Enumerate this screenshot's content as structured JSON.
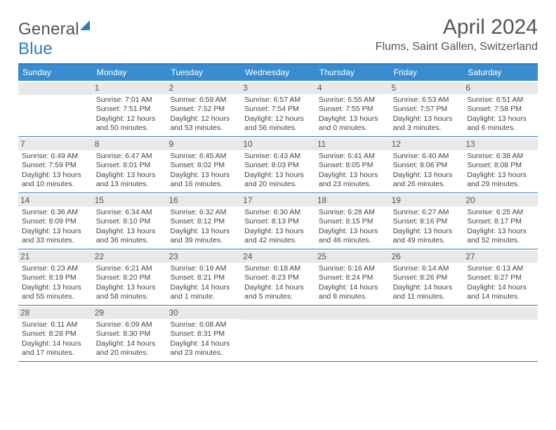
{
  "logo": {
    "part1": "General",
    "part2": "Blue"
  },
  "title": "April 2024",
  "location": "Flums, Saint Gallen, Switzerland",
  "dayNames": [
    "Sunday",
    "Monday",
    "Tuesday",
    "Wednesday",
    "Thursday",
    "Friday",
    "Saturday"
  ],
  "colors": {
    "accent": "#3a8cd1",
    "rule": "#2b7cc2",
    "cellhead": "#e9e9e9",
    "text": "#444444"
  },
  "weeks": [
    [
      {
        "num": "",
        "sunrise": "",
        "sunset": "",
        "daylight1": "",
        "daylight2": ""
      },
      {
        "num": "1",
        "sunrise": "Sunrise: 7:01 AM",
        "sunset": "Sunset: 7:51 PM",
        "daylight1": "Daylight: 12 hours",
        "daylight2": "and 50 minutes."
      },
      {
        "num": "2",
        "sunrise": "Sunrise: 6:59 AM",
        "sunset": "Sunset: 7:52 PM",
        "daylight1": "Daylight: 12 hours",
        "daylight2": "and 53 minutes."
      },
      {
        "num": "3",
        "sunrise": "Sunrise: 6:57 AM",
        "sunset": "Sunset: 7:54 PM",
        "daylight1": "Daylight: 12 hours",
        "daylight2": "and 56 minutes."
      },
      {
        "num": "4",
        "sunrise": "Sunrise: 6:55 AM",
        "sunset": "Sunset: 7:55 PM",
        "daylight1": "Daylight: 13 hours",
        "daylight2": "and 0 minutes."
      },
      {
        "num": "5",
        "sunrise": "Sunrise: 6:53 AM",
        "sunset": "Sunset: 7:57 PM",
        "daylight1": "Daylight: 13 hours",
        "daylight2": "and 3 minutes."
      },
      {
        "num": "6",
        "sunrise": "Sunrise: 6:51 AM",
        "sunset": "Sunset: 7:58 PM",
        "daylight1": "Daylight: 13 hours",
        "daylight2": "and 6 minutes."
      }
    ],
    [
      {
        "num": "7",
        "sunrise": "Sunrise: 6:49 AM",
        "sunset": "Sunset: 7:59 PM",
        "daylight1": "Daylight: 13 hours",
        "daylight2": "and 10 minutes."
      },
      {
        "num": "8",
        "sunrise": "Sunrise: 6:47 AM",
        "sunset": "Sunset: 8:01 PM",
        "daylight1": "Daylight: 13 hours",
        "daylight2": "and 13 minutes."
      },
      {
        "num": "9",
        "sunrise": "Sunrise: 6:45 AM",
        "sunset": "Sunset: 8:02 PM",
        "daylight1": "Daylight: 13 hours",
        "daylight2": "and 16 minutes."
      },
      {
        "num": "10",
        "sunrise": "Sunrise: 6:43 AM",
        "sunset": "Sunset: 8:03 PM",
        "daylight1": "Daylight: 13 hours",
        "daylight2": "and 20 minutes."
      },
      {
        "num": "11",
        "sunrise": "Sunrise: 6:41 AM",
        "sunset": "Sunset: 8:05 PM",
        "daylight1": "Daylight: 13 hours",
        "daylight2": "and 23 minutes."
      },
      {
        "num": "12",
        "sunrise": "Sunrise: 6:40 AM",
        "sunset": "Sunset: 8:06 PM",
        "daylight1": "Daylight: 13 hours",
        "daylight2": "and 26 minutes."
      },
      {
        "num": "13",
        "sunrise": "Sunrise: 6:38 AM",
        "sunset": "Sunset: 8:08 PM",
        "daylight1": "Daylight: 13 hours",
        "daylight2": "and 29 minutes."
      }
    ],
    [
      {
        "num": "14",
        "sunrise": "Sunrise: 6:36 AM",
        "sunset": "Sunset: 8:09 PM",
        "daylight1": "Daylight: 13 hours",
        "daylight2": "and 33 minutes."
      },
      {
        "num": "15",
        "sunrise": "Sunrise: 6:34 AM",
        "sunset": "Sunset: 8:10 PM",
        "daylight1": "Daylight: 13 hours",
        "daylight2": "and 36 minutes."
      },
      {
        "num": "16",
        "sunrise": "Sunrise: 6:32 AM",
        "sunset": "Sunset: 8:12 PM",
        "daylight1": "Daylight: 13 hours",
        "daylight2": "and 39 minutes."
      },
      {
        "num": "17",
        "sunrise": "Sunrise: 6:30 AM",
        "sunset": "Sunset: 8:13 PM",
        "daylight1": "Daylight: 13 hours",
        "daylight2": "and 42 minutes."
      },
      {
        "num": "18",
        "sunrise": "Sunrise: 6:28 AM",
        "sunset": "Sunset: 8:15 PM",
        "daylight1": "Daylight: 13 hours",
        "daylight2": "and 46 minutes."
      },
      {
        "num": "19",
        "sunrise": "Sunrise: 6:27 AM",
        "sunset": "Sunset: 8:16 PM",
        "daylight1": "Daylight: 13 hours",
        "daylight2": "and 49 minutes."
      },
      {
        "num": "20",
        "sunrise": "Sunrise: 6:25 AM",
        "sunset": "Sunset: 8:17 PM",
        "daylight1": "Daylight: 13 hours",
        "daylight2": "and 52 minutes."
      }
    ],
    [
      {
        "num": "21",
        "sunrise": "Sunrise: 6:23 AM",
        "sunset": "Sunset: 8:19 PM",
        "daylight1": "Daylight: 13 hours",
        "daylight2": "and 55 minutes."
      },
      {
        "num": "22",
        "sunrise": "Sunrise: 6:21 AM",
        "sunset": "Sunset: 8:20 PM",
        "daylight1": "Daylight: 13 hours",
        "daylight2": "and 58 minutes."
      },
      {
        "num": "23",
        "sunrise": "Sunrise: 6:19 AM",
        "sunset": "Sunset: 8:21 PM",
        "daylight1": "Daylight: 14 hours",
        "daylight2": "and 1 minute."
      },
      {
        "num": "24",
        "sunrise": "Sunrise: 6:18 AM",
        "sunset": "Sunset: 8:23 PM",
        "daylight1": "Daylight: 14 hours",
        "daylight2": "and 5 minutes."
      },
      {
        "num": "25",
        "sunrise": "Sunrise: 6:16 AM",
        "sunset": "Sunset: 8:24 PM",
        "daylight1": "Daylight: 14 hours",
        "daylight2": "and 8 minutes."
      },
      {
        "num": "26",
        "sunrise": "Sunrise: 6:14 AM",
        "sunset": "Sunset: 8:26 PM",
        "daylight1": "Daylight: 14 hours",
        "daylight2": "and 11 minutes."
      },
      {
        "num": "27",
        "sunrise": "Sunrise: 6:13 AM",
        "sunset": "Sunset: 8:27 PM",
        "daylight1": "Daylight: 14 hours",
        "daylight2": "and 14 minutes."
      }
    ],
    [
      {
        "num": "28",
        "sunrise": "Sunrise: 6:11 AM",
        "sunset": "Sunset: 8:28 PM",
        "daylight1": "Daylight: 14 hours",
        "daylight2": "and 17 minutes."
      },
      {
        "num": "29",
        "sunrise": "Sunrise: 6:09 AM",
        "sunset": "Sunset: 8:30 PM",
        "daylight1": "Daylight: 14 hours",
        "daylight2": "and 20 minutes."
      },
      {
        "num": "30",
        "sunrise": "Sunrise: 6:08 AM",
        "sunset": "Sunset: 8:31 PM",
        "daylight1": "Daylight: 14 hours",
        "daylight2": "and 23 minutes."
      },
      {
        "num": "",
        "sunrise": "",
        "sunset": "",
        "daylight1": "",
        "daylight2": ""
      },
      {
        "num": "",
        "sunrise": "",
        "sunset": "",
        "daylight1": "",
        "daylight2": ""
      },
      {
        "num": "",
        "sunrise": "",
        "sunset": "",
        "daylight1": "",
        "daylight2": ""
      },
      {
        "num": "",
        "sunrise": "",
        "sunset": "",
        "daylight1": "",
        "daylight2": ""
      }
    ]
  ]
}
